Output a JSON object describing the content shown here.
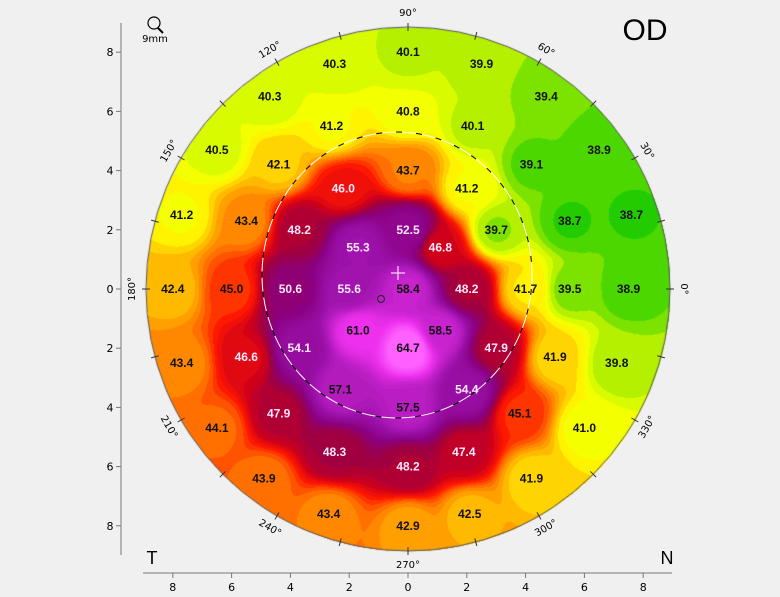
{
  "eye_label": "OD",
  "zoom_label": "9mm",
  "side_left": "T",
  "side_right": "N",
  "colors": {
    "scale": [
      {
        "v": 37.5,
        "c": "#00b800"
      },
      {
        "v": 38.5,
        "c": "#22cc00"
      },
      {
        "v": 39.3,
        "c": "#66dd00"
      },
      {
        "v": 40.0,
        "c": "#b4f000"
      },
      {
        "v": 40.7,
        "c": "#e8ff00"
      },
      {
        "v": 41.3,
        "c": "#ffff00"
      },
      {
        "v": 42.0,
        "c": "#ffd400"
      },
      {
        "v": 43.0,
        "c": "#ffa000"
      },
      {
        "v": 44.0,
        "c": "#ff7000"
      },
      {
        "v": 45.5,
        "c": "#ff1800"
      },
      {
        "v": 47.0,
        "c": "#d0001a"
      },
      {
        "v": 48.5,
        "c": "#a00040"
      },
      {
        "v": 51.0,
        "c": "#8a0080"
      },
      {
        "v": 55.0,
        "c": "#9a10a8"
      },
      {
        "v": 58.0,
        "c": "#c020c8"
      },
      {
        "v": 61.0,
        "c": "#ee30ee"
      },
      {
        "v": 64.0,
        "c": "#ff60ff"
      }
    ],
    "background": "#f0f0f0"
  },
  "chart_data": {
    "type": "heatmap",
    "xlabel": "",
    "ylabel": "",
    "xlim": [
      -9,
      9
    ],
    "ylim": [
      -9,
      9
    ],
    "x_ticks": [
      "8",
      "6",
      "4",
      "2",
      "0",
      "2",
      "4",
      "6",
      "8"
    ],
    "y_ticks": [
      "8",
      "6",
      "4",
      "2",
      "0",
      "2",
      "4",
      "6",
      "8"
    ],
    "angle_labels": [
      "90°",
      "60°",
      "30°",
      "0°",
      "330°",
      "300°",
      "270°",
      "240°",
      "210°",
      "180°",
      "150°",
      "120°"
    ],
    "points": [
      {
        "x": 0,
        "y": 8,
        "v": "40.1"
      },
      {
        "x": -2.5,
        "y": 7.6,
        "v": "40.3"
      },
      {
        "x": 2.5,
        "y": 7.6,
        "v": "39.9"
      },
      {
        "x": -4.7,
        "y": 6.5,
        "v": "40.3"
      },
      {
        "x": 4.7,
        "y": 6.5,
        "v": "39.4"
      },
      {
        "x": 0,
        "y": 6,
        "v": "40.8"
      },
      {
        "x": -2.6,
        "y": 5.5,
        "v": "41.2"
      },
      {
        "x": 2.2,
        "y": 5.5,
        "v": "40.1"
      },
      {
        "x": -6.5,
        "y": 4.7,
        "v": "40.5"
      },
      {
        "x": 6.5,
        "y": 4.7,
        "v": "38.9"
      },
      {
        "x": -4.4,
        "y": 4.2,
        "v": "42.1"
      },
      {
        "x": 4.2,
        "y": 4.2,
        "v": "39.1"
      },
      {
        "x": 0,
        "y": 4,
        "v": "43.7"
      },
      {
        "x": -2.2,
        "y": 3.4,
        "v": "46.0"
      },
      {
        "x": 2,
        "y": 3.4,
        "v": "41.2"
      },
      {
        "x": -7.7,
        "y": 2.5,
        "v": "41.2"
      },
      {
        "x": -5.5,
        "y": 2.3,
        "v": "43.4"
      },
      {
        "x": 5.5,
        "y": 2.3,
        "v": "38.7"
      },
      {
        "x": 7.6,
        "y": 2.5,
        "v": "38.7"
      },
      {
        "x": -3.7,
        "y": 2,
        "v": "48.2"
      },
      {
        "x": 0,
        "y": 2,
        "v": "52.5"
      },
      {
        "x": 3,
        "y": 2,
        "v": "39.7"
      },
      {
        "x": -1.7,
        "y": 1.4,
        "v": "55.3"
      },
      {
        "x": 1.1,
        "y": 1.4,
        "v": "46.8"
      },
      {
        "x": -8,
        "y": 0,
        "v": "42.4"
      },
      {
        "x": -6,
        "y": 0,
        "v": "45.0"
      },
      {
        "x": -4,
        "y": 0,
        "v": "50.6"
      },
      {
        "x": -2,
        "y": 0,
        "v": "55.6"
      },
      {
        "x": 0,
        "y": 0,
        "v": "58.4"
      },
      {
        "x": 2,
        "y": 0,
        "v": "48.2"
      },
      {
        "x": 4,
        "y": 0,
        "v": "41.7"
      },
      {
        "x": 5.5,
        "y": 0,
        "v": "39.5"
      },
      {
        "x": 7.5,
        "y": 0,
        "v": "38.9"
      },
      {
        "x": -1.7,
        "y": -1.4,
        "v": "61.0"
      },
      {
        "x": 1.1,
        "y": -1.4,
        "v": "58.5"
      },
      {
        "x": -3.7,
        "y": -2,
        "v": "54.1"
      },
      {
        "x": 0,
        "y": -2,
        "v": "64.7"
      },
      {
        "x": 3,
        "y": -2,
        "v": "47.9"
      },
      {
        "x": -5.5,
        "y": -2.3,
        "v": "46.6"
      },
      {
        "x": 5,
        "y": -2.3,
        "v": "41.9"
      },
      {
        "x": -7.7,
        "y": -2.5,
        "v": "43.4"
      },
      {
        "x": 7.1,
        "y": -2.5,
        "v": "39.8"
      },
      {
        "x": -2.3,
        "y": -3.4,
        "v": "57.1"
      },
      {
        "x": 2,
        "y": -3.4,
        "v": "54.4"
      },
      {
        "x": 0,
        "y": -4,
        "v": "57.5"
      },
      {
        "x": 3.8,
        "y": -4.2,
        "v": "45.1"
      },
      {
        "x": -4.4,
        "y": -4.2,
        "v": "47.9"
      },
      {
        "x": -6.5,
        "y": -4.7,
        "v": "44.1"
      },
      {
        "x": 6,
        "y": -4.7,
        "v": "41.0"
      },
      {
        "x": -2.5,
        "y": -5.5,
        "v": "48.3"
      },
      {
        "x": 1.9,
        "y": -5.5,
        "v": "47.4"
      },
      {
        "x": 0,
        "y": -6,
        "v": "48.2"
      },
      {
        "x": -4.9,
        "y": -6.4,
        "v": "43.9"
      },
      {
        "x": 4.2,
        "y": -6.4,
        "v": "41.9"
      },
      {
        "x": -2.7,
        "y": -7.6,
        "v": "43.4"
      },
      {
        "x": 2.1,
        "y": -7.6,
        "v": "42.5"
      },
      {
        "x": 0,
        "y": -8,
        "v": "42.9"
      }
    ]
  }
}
